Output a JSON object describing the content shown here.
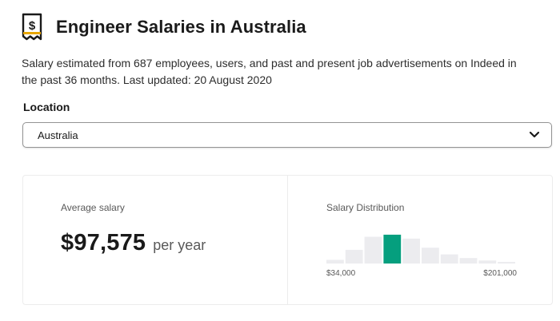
{
  "header": {
    "icon": "salary-dollar-icon",
    "title": "Engineer Salaries in Australia"
  },
  "description": "Salary estimated from 687 employees, users, and past and present job advertisements on Indeed in the past 36 months. Last updated: 20 August 2020",
  "location": {
    "label": "Location",
    "selected": "Australia",
    "icon": "chevron-down-icon"
  },
  "average_salary": {
    "label": "Average salary",
    "value": "$97,575",
    "unit": "per year"
  },
  "distribution": {
    "label": "Salary Distribution",
    "min_label": "$34,000",
    "max_label": "$201,000",
    "bar_levels": [
      0.12,
      0.45,
      0.88,
      0.95,
      0.82,
      0.52,
      0.3,
      0.18,
      0.1,
      0.05
    ],
    "highlight_index": 3,
    "colors": {
      "bar": "#ececef",
      "highlight": "#059f7e"
    }
  }
}
